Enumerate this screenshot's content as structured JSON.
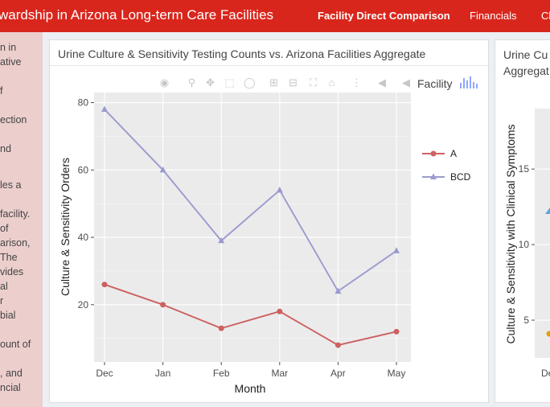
{
  "header": {
    "brand": "wardship in Arizona Long-term Care Facilities",
    "nav": [
      {
        "label": "Facility Direct Comparison",
        "active": true
      },
      {
        "label": "Financials",
        "active": false
      },
      {
        "label": "Cl",
        "active": false
      }
    ]
  },
  "sidebar": {
    "lines": [
      "n in",
      "ative",
      "f",
      "ection",
      "nd",
      "les a",
      "facility.",
      "of",
      "arison,",
      "The",
      "vides",
      "al",
      "r",
      "bial",
      "ount of",
      ", and",
      "ncial"
    ]
  },
  "main_card": {
    "title": "Urine Culture & Sensitivity Testing Counts vs. Arizona Facilities Aggregate"
  },
  "side_card": {
    "title_line1": "Urine Cu",
    "title_line2": "Aggregat"
  },
  "colors": {
    "header_bg": "#d9261c",
    "series_a": "#cd6161",
    "series_bcd": "#9b9bd0",
    "plot_bg": "#ebebeb",
    "side_point_blue": "#5aa7dc",
    "side_point_orange": "#e69f00"
  },
  "chart_data": [
    {
      "type": "line",
      "xlabel": "Month",
      "ylabel": "Culture & Sensitivity Orders",
      "categories": [
        "Dec",
        "Jan",
        "Feb",
        "Mar",
        "Apr",
        "May"
      ],
      "yticks": [
        "20",
        "40",
        "60",
        "80"
      ],
      "ylim": [
        3,
        83
      ],
      "legend_title": "Facility",
      "legend_position": "right",
      "series": [
        {
          "name": "A",
          "marker": "circle",
          "values": [
            26,
            20,
            13,
            18,
            8,
            12
          ]
        },
        {
          "name": "BCD",
          "marker": "triangle",
          "values": [
            78,
            60,
            39,
            54,
            24,
            36
          ]
        }
      ]
    },
    {
      "type": "scatter",
      "ylabel": "Culture & Sensitivity with Clinical Symptoms",
      "yticks": [
        "5",
        "10",
        "15"
      ],
      "xtick_partial": "De",
      "ylim": [
        2.5,
        19
      ]
    }
  ]
}
